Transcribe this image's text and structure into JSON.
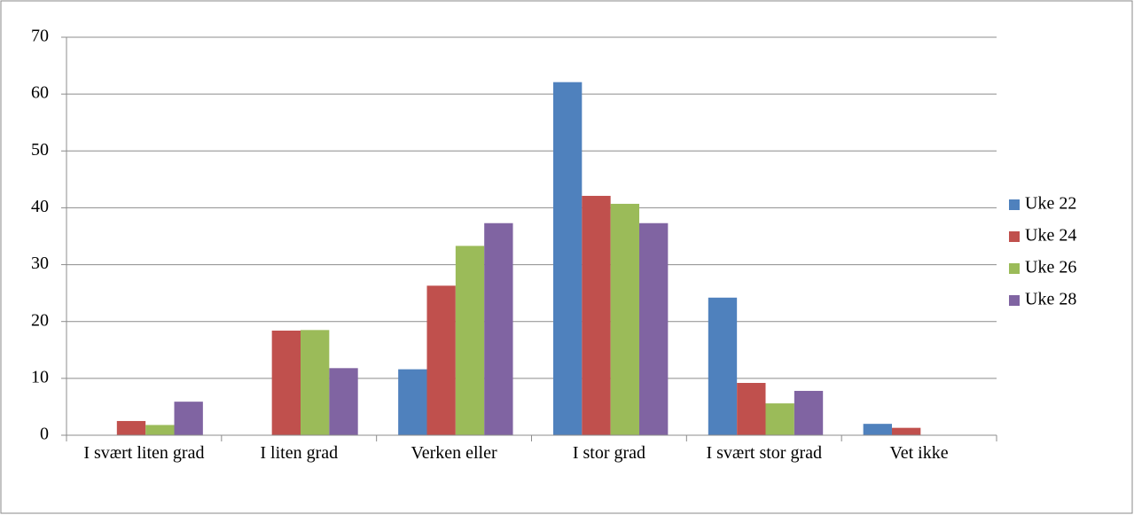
{
  "chart_data": {
    "type": "bar",
    "categories": [
      "I svært liten grad",
      "I liten grad",
      "Verken eller",
      "I stor grad",
      "I svært stor grad",
      "Vet ikke"
    ],
    "series": [
      {
        "name": "Uke 22",
        "color": "#4f81bd",
        "values": [
          0,
          0,
          11.6,
          62.1,
          24.2,
          2.0
        ]
      },
      {
        "name": "Uke 24",
        "color": "#c0504d",
        "values": [
          2.5,
          18.4,
          26.3,
          42.1,
          9.2,
          1.3
        ]
      },
      {
        "name": "Uke 26",
        "color": "#9bbb59",
        "values": [
          1.8,
          18.5,
          33.3,
          40.7,
          5.6,
          0
        ]
      },
      {
        "name": "Uke 28",
        "color": "#8064a2",
        "values": [
          5.9,
          11.8,
          37.3,
          37.3,
          7.8,
          0
        ]
      }
    ],
    "ylim": [
      0,
      70
    ],
    "yticks": [
      0,
      10,
      20,
      30,
      40,
      50,
      60,
      70
    ],
    "grid": true,
    "legend": "right"
  }
}
